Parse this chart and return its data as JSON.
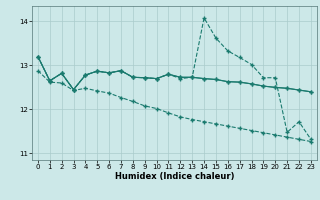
{
  "xlabel": "Humidex (Indice chaleur)",
  "background_color": "#cce8e8",
  "grid_color": "#aacccc",
  "line_color": "#1a7a6e",
  "xlim": [
    -0.5,
    23.5
  ],
  "ylim": [
    10.85,
    14.35
  ],
  "yticks": [
    11,
    12,
    13,
    14
  ],
  "xticks": [
    0,
    1,
    2,
    3,
    4,
    5,
    6,
    7,
    8,
    9,
    10,
    11,
    12,
    13,
    14,
    15,
    16,
    17,
    18,
    19,
    20,
    21,
    22,
    23
  ],
  "series": {
    "line_main": [
      13.2,
      12.65,
      12.82,
      12.45,
      12.78,
      12.87,
      12.83,
      12.88,
      12.73,
      12.72,
      12.7,
      12.8,
      12.73,
      12.73,
      12.7,
      12.68,
      12.63,
      12.62,
      12.58,
      12.53,
      12.5,
      12.48,
      12.44,
      12.4
    ],
    "line_spike": [
      13.2,
      12.65,
      12.82,
      12.45,
      12.78,
      12.87,
      12.83,
      12.88,
      12.73,
      12.72,
      12.7,
      12.8,
      12.7,
      12.73,
      14.08,
      13.62,
      13.33,
      13.18,
      13.02,
      12.72,
      12.72,
      11.48,
      11.72,
      11.32
    ],
    "line_flat": [
      13.2,
      12.65,
      12.82,
      12.45,
      12.78,
      12.87,
      12.83,
      12.88,
      12.73,
      12.72,
      12.7,
      12.8,
      12.73,
      12.73,
      12.7,
      12.68,
      12.63,
      12.62,
      12.58,
      12.53,
      12.5,
      12.48,
      12.44,
      12.4
    ],
    "line_decline": [
      12.88,
      12.62,
      12.6,
      12.43,
      12.48,
      12.42,
      12.37,
      12.27,
      12.18,
      12.08,
      12.02,
      11.92,
      11.83,
      11.77,
      11.72,
      11.67,
      11.62,
      11.57,
      11.52,
      11.47,
      11.42,
      11.37,
      11.32,
      11.27
    ]
  }
}
